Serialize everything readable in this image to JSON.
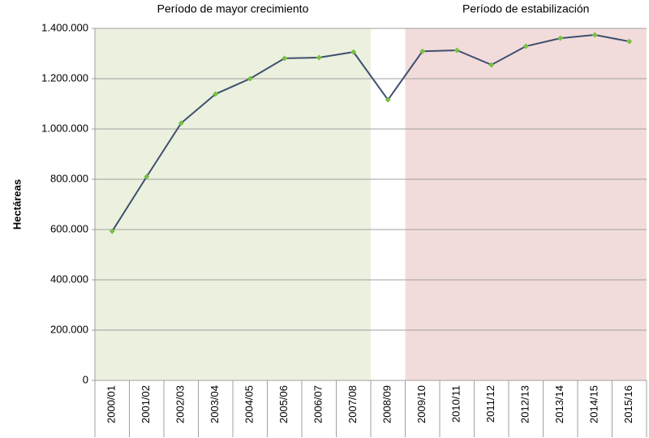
{
  "chart_data": {
    "type": "line",
    "y_label": "Hectáreas",
    "categories": [
      "2000/01",
      "2001/02",
      "2002/03",
      "2003/04",
      "2004/05",
      "2005/06",
      "2006/07",
      "2007/08",
      "2008/09",
      "2009/10",
      "2010/11",
      "2011/12",
      "2012/13",
      "2013/14",
      "2014/15",
      "2015/16"
    ],
    "series": [
      {
        "color": "#3f4f6e",
        "marker_color": "#7ac143",
        "values": [
          593000,
          810000,
          1023000,
          1139000,
          1200000,
          1281000,
          1284000,
          1306000,
          1116000,
          1309000,
          1313000,
          1255000,
          1329000,
          1361000,
          1374000,
          1348000
        ]
      }
    ],
    "ylim": [
      0,
      1400000
    ],
    "yticks": [
      0,
      {
        "value": 200000,
        "label": "200.000"
      },
      {
        "value": 400000,
        "label": "400.000"
      },
      {
        "value": 600000,
        "label": "600.000"
      },
      {
        "value": 800000,
        "label": "800.000"
      },
      {
        "value": 1000000,
        "label": "1.000.000"
      },
      {
        "value": 1200000,
        "label": "1.200.000"
      },
      {
        "value": 1400000,
        "label": "1.400.000"
      }
    ],
    "grid": true,
    "regions": [
      {
        "label": "Período de mayor crecimiento",
        "from": "2000/01",
        "to": "2007/08",
        "color": "#ebf1de"
      },
      {
        "label": "Período de estabilización",
        "from": "2009/10",
        "to": "2015/16",
        "color": "#f2dcdb"
      }
    ]
  }
}
